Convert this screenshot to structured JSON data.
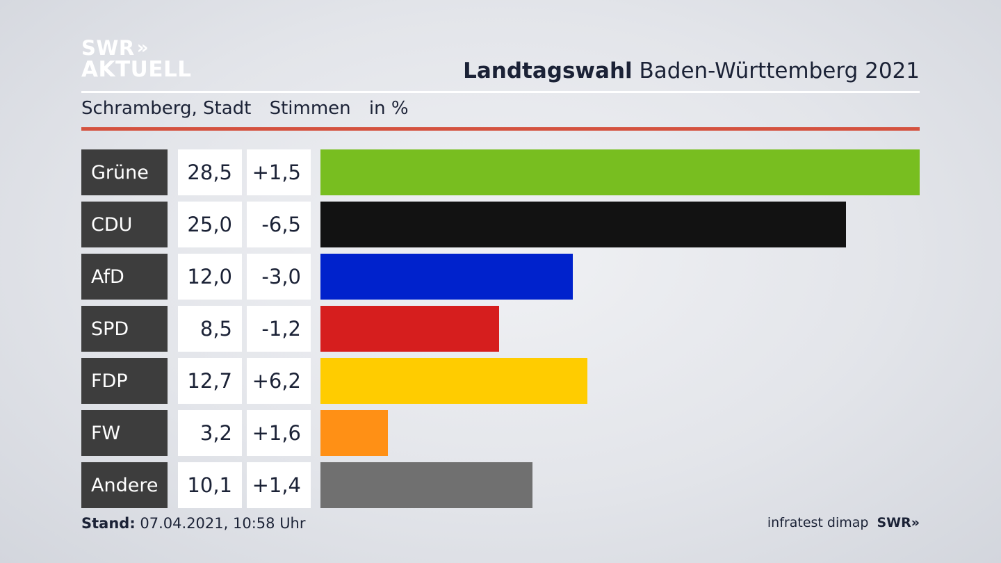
{
  "logo": {
    "line1": "SWR",
    "chevrons": "»",
    "line2": "AKTUELL"
  },
  "header": {
    "title_bold": "Landtagswahl",
    "title_rest": "Baden-Württemberg 2021"
  },
  "subtitle": {
    "place": "Schramberg, Stadt",
    "measure": "Stimmen",
    "unit": "in %"
  },
  "colors": {
    "accent_rule": "#d4523f",
    "party_cell_bg": "#3d3d3d"
  },
  "chart_data": {
    "type": "bar",
    "orientation": "horizontal",
    "categories": [
      "Grüne",
      "CDU",
      "AfD",
      "SPD",
      "FDP",
      "FW",
      "Andere"
    ],
    "values": [
      28.5,
      25.0,
      12.0,
      8.5,
      12.7,
      3.2,
      10.1
    ],
    "value_labels": [
      "28,5",
      "25,0",
      "12,0",
      "8,5",
      "12,7",
      "3,2",
      "10,1"
    ],
    "diff_labels": [
      "+1,5",
      "-6,5",
      "-3,0",
      "-1,2",
      "+6,2",
      "+1,6",
      "+1,4"
    ],
    "bar_colors": [
      "#78be20",
      "#121212",
      "#0022cc",
      "#d61e1e",
      "#ffcc00",
      "#ff9015",
      "#707070"
    ],
    "xlim": [
      0,
      28.5
    ],
    "grid": false,
    "legend": "none"
  },
  "footer": {
    "stand_label": "Stand:",
    "stand_value": "07.04.2021, 10:58 Uhr",
    "source": "infratest dimap",
    "brand": "SWR»"
  }
}
